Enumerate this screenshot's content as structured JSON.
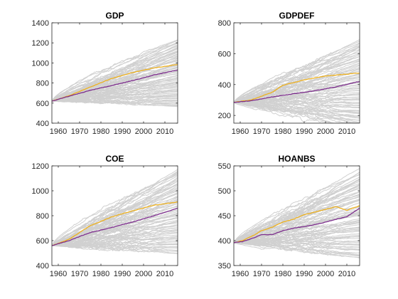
{
  "figure": {
    "background": "#ffffff"
  },
  "chart_data": [
    {
      "type": "line",
      "title": "GDP",
      "xlim": [
        1957,
        2016
      ],
      "ylim": [
        400,
        1400
      ],
      "xticks": [
        1960,
        1970,
        1980,
        1990,
        2000,
        2010
      ],
      "yticks": [
        400,
        600,
        800,
        1000,
        1200,
        1400
      ],
      "grid": false,
      "start": {
        "x": 1957,
        "y": 620
      },
      "end_x": 2016,
      "simulations": {
        "color": "#d0d0d0",
        "count": 80,
        "end_min": 560,
        "end_max": 1240
      },
      "series": [
        {
          "color": "#edb120",
          "x": [
            1957,
            1965,
            1975,
            1985,
            1995,
            2005,
            2016
          ],
          "y": [
            620,
            672,
            760,
            845,
            905,
            950,
            985
          ]
        },
        {
          "color": "#7e2f8e",
          "x": [
            1957,
            1965,
            1975,
            1985,
            1995,
            2005,
            2016
          ],
          "y": [
            620,
            668,
            727,
            775,
            825,
            880,
            930
          ]
        }
      ]
    },
    {
      "type": "line",
      "title": "GDPDEF",
      "xlim": [
        1957,
        2016
      ],
      "ylim": [
        150,
        800
      ],
      "xticks": [
        1960,
        1970,
        1980,
        1990,
        2000,
        2010
      ],
      "yticks": [
        200,
        400,
        600,
        800
      ],
      "grid": false,
      "start": {
        "x": 1957,
        "y": 285
      },
      "end_x": 2016,
      "simulations": {
        "color": "#d0d0d0",
        "count": 80,
        "end_min": 110,
        "end_max": 690
      },
      "series": [
        {
          "color": "#edb120",
          "x": [
            1957,
            1965,
            1975,
            1980,
            1990,
            2000,
            2016
          ],
          "y": [
            285,
            300,
            350,
            395,
            430,
            455,
            475
          ]
        },
        {
          "color": "#7e2f8e",
          "x": [
            1957,
            1965,
            1975,
            1985,
            1995,
            2005,
            2016
          ],
          "y": [
            285,
            295,
            320,
            340,
            360,
            385,
            420
          ]
        }
      ]
    },
    {
      "type": "line",
      "title": "COE",
      "xlim": [
        1957,
        2016
      ],
      "ylim": [
        400,
        1200
      ],
      "xticks": [
        1960,
        1970,
        1980,
        1990,
        2000,
        2010
      ],
      "yticks": [
        400,
        600,
        800,
        1000,
        1200
      ],
      "grid": false,
      "start": {
        "x": 1957,
        "y": 560
      },
      "end_x": 2016,
      "simulations": {
        "color": "#d0d0d0",
        "count": 80,
        "end_min": 490,
        "end_max": 1170
      },
      "series": [
        {
          "color": "#edb120",
          "x": [
            1957,
            1965,
            1975,
            1985,
            1995,
            2005,
            2016
          ],
          "y": [
            560,
            610,
            720,
            790,
            840,
            885,
            910
          ]
        },
        {
          "color": "#7e2f8e",
          "x": [
            1957,
            1965,
            1975,
            1985,
            1995,
            2005,
            2016
          ],
          "y": [
            560,
            600,
            665,
            705,
            750,
            800,
            860
          ]
        }
      ]
    },
    {
      "type": "line",
      "title": "HOANBS",
      "xlim": [
        1957,
        2016
      ],
      "ylim": [
        350,
        550
      ],
      "xticks": [
        1960,
        1970,
        1980,
        1990,
        2000,
        2010
      ],
      "yticks": [
        350,
        400,
        450,
        500,
        550
      ],
      "grid": false,
      "start": {
        "x": 1957,
        "y": 396
      },
      "end_x": 2016,
      "simulations": {
        "color": "#d0d0d0",
        "count": 80,
        "end_min": 362,
        "end_max": 542
      },
      "series": [
        {
          "color": "#edb120",
          "x": [
            1957,
            1961,
            1966,
            1970,
            1975,
            1980,
            1985,
            1990,
            1995,
            2000,
            2005,
            2010,
            2016
          ],
          "y": [
            396,
            400,
            410,
            420,
            427,
            437,
            443,
            452,
            457,
            463,
            468,
            461,
            470
          ]
        },
        {
          "color": "#7e2f8e",
          "x": [
            1957,
            1961,
            1966,
            1970,
            1975,
            1980,
            1985,
            1990,
            1995,
            2000,
            2005,
            2010,
            2016
          ],
          "y": [
            396,
            398,
            405,
            412,
            412,
            420,
            425,
            428,
            432,
            437,
            443,
            448,
            465
          ]
        }
      ]
    }
  ]
}
